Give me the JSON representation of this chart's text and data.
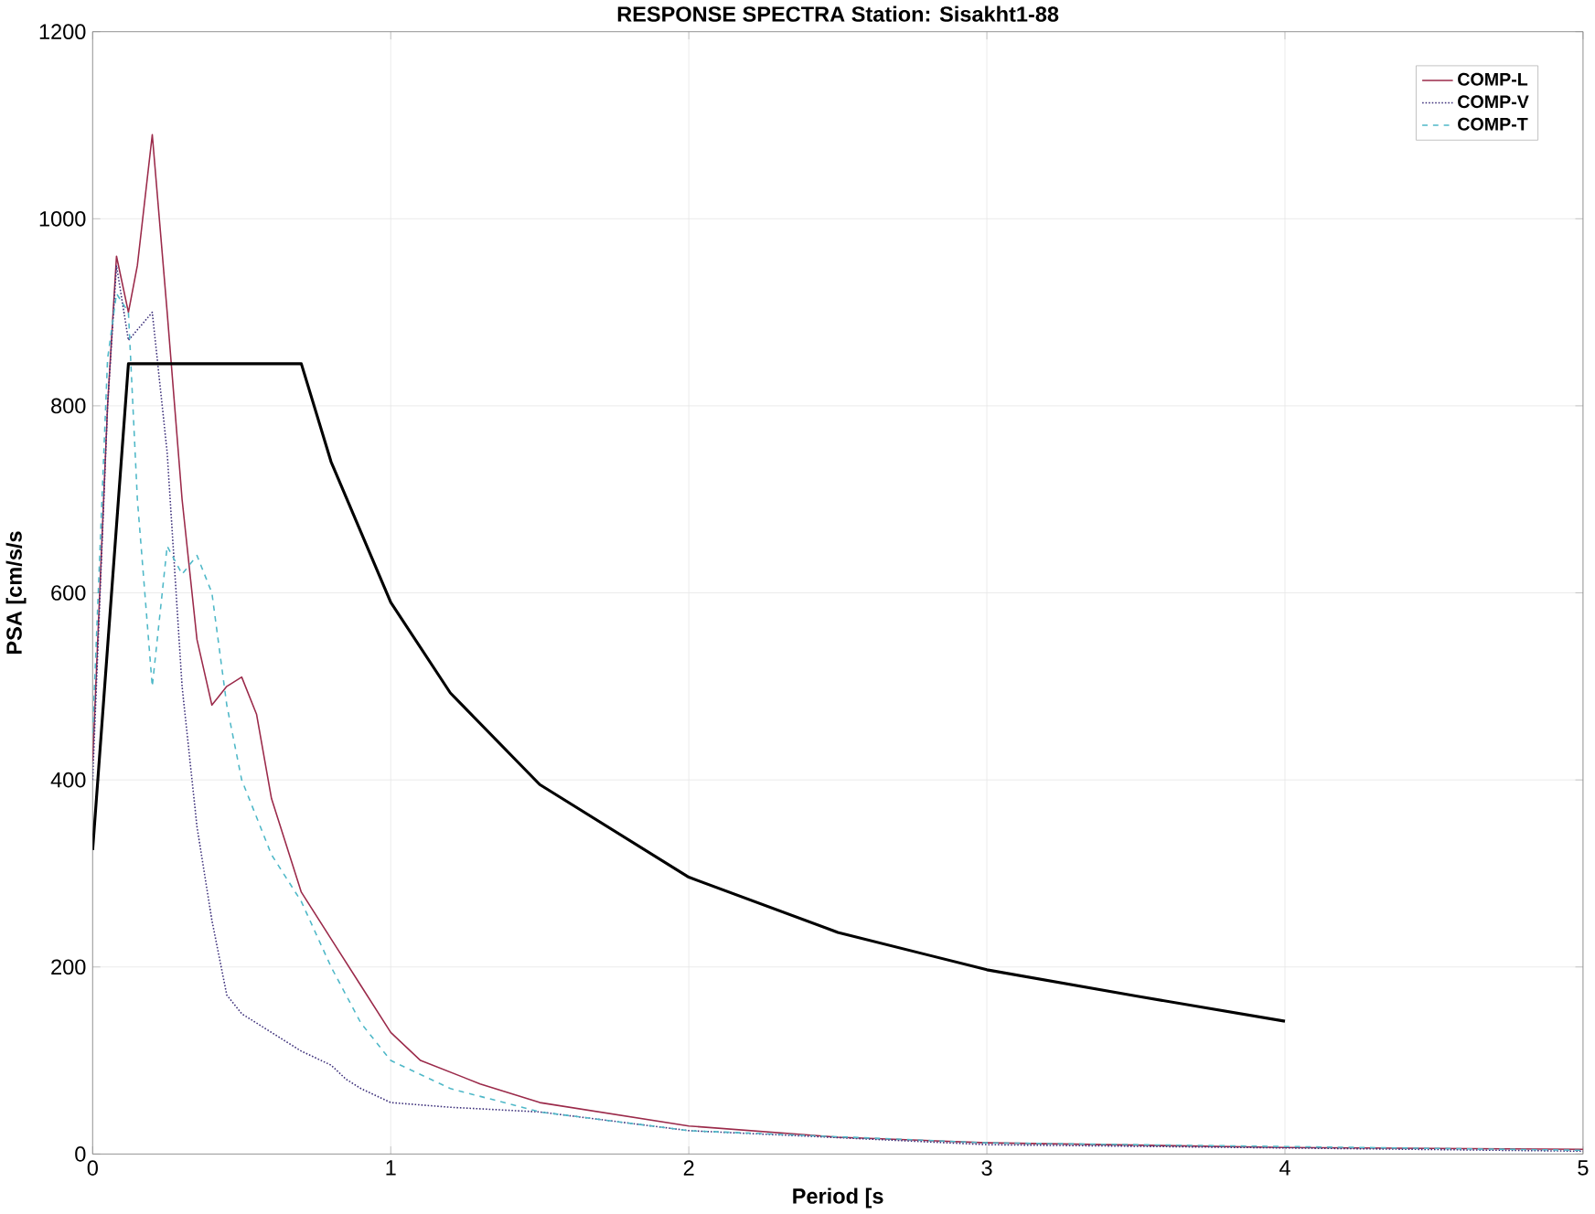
{
  "chart_data": {
    "type": "line",
    "title": "RESPONSE SPECTRA   Station: Sisakht1-88",
    "xlabel": "Period [s",
    "ylabel": "PSA  [cm/s/s",
    "xlim": [
      0,
      5
    ],
    "ylim": [
      0,
      1200
    ],
    "xticks": [
      0,
      1,
      2,
      3,
      4,
      5
    ],
    "yticks": [
      0,
      200,
      400,
      600,
      800,
      1000,
      1200
    ],
    "grid": true,
    "legend": "top right",
    "series": [
      {
        "name": "COMP-L",
        "color": "#9b2a4a",
        "line_style": "solid",
        "x": [
          0,
          0.05,
          0.08,
          0.12,
          0.15,
          0.2,
          0.25,
          0.3,
          0.35,
          0.4,
          0.45,
          0.5,
          0.55,
          0.6,
          0.7,
          0.8,
          0.9,
          1.0,
          1.1,
          1.3,
          1.5,
          2.0,
          2.5,
          3,
          4,
          5
        ],
        "values": [
          420,
          800,
          960,
          900,
          950,
          1090,
          900,
          700,
          550,
          480,
          500,
          510,
          470,
          380,
          280,
          230,
          180,
          130,
          100,
          75,
          55,
          30,
          18,
          12,
          7,
          5
        ]
      },
      {
        "name": "COMP-V",
        "color": "#3c2f7a",
        "line_style": "dotted",
        "x": [
          0,
          0.05,
          0.08,
          0.12,
          0.2,
          0.25,
          0.3,
          0.35,
          0.4,
          0.45,
          0.5,
          0.6,
          0.7,
          0.8,
          0.85,
          0.9,
          1.0,
          1.2,
          1.5,
          2,
          3,
          5
        ],
        "values": [
          400,
          800,
          950,
          870,
          900,
          750,
          500,
          350,
          250,
          170,
          150,
          130,
          110,
          95,
          80,
          70,
          55,
          50,
          45,
          25,
          10,
          3
        ]
      },
      {
        "name": "COMP-T",
        "color": "#4fb8c8",
        "line_style": "dashed",
        "x": [
          0,
          0.05,
          0.08,
          0.12,
          0.15,
          0.2,
          0.25,
          0.3,
          0.35,
          0.4,
          0.45,
          0.5,
          0.6,
          0.7,
          0.8,
          0.9,
          1.0,
          1.2,
          1.5,
          2,
          3,
          5
        ],
        "values": [
          450,
          850,
          920,
          900,
          700,
          500,
          650,
          620,
          640,
          600,
          480,
          400,
          320,
          270,
          200,
          140,
          100,
          70,
          45,
          25,
          12,
          4
        ]
      },
      {
        "color": "#000000",
        "line_style": "solid",
        "x": [
          0,
          0.12,
          0.7,
          0.8,
          1.0,
          1.2,
          1.5,
          2.0,
          2.5,
          3.0,
          3.5,
          4.0
        ],
        "values": [
          325,
          845,
          845,
          740,
          590,
          493,
          395,
          296,
          237,
          197,
          169,
          142
        ]
      }
    ]
  }
}
